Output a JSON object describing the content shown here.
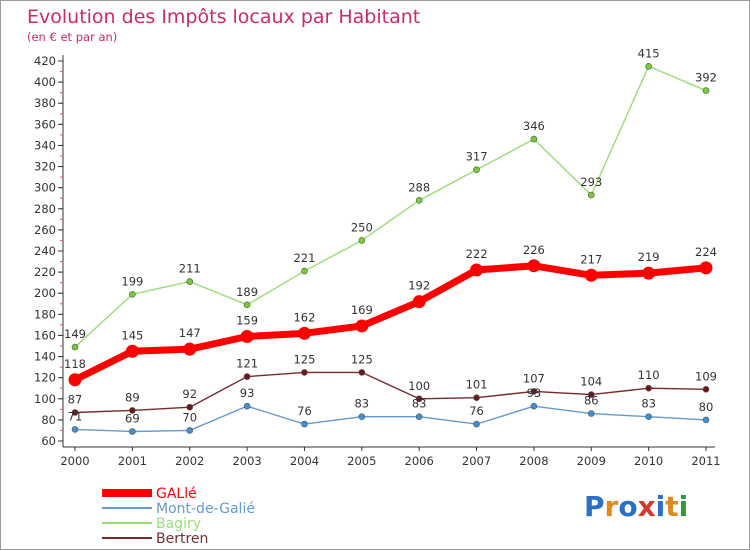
{
  "chart_data": {
    "type": "line",
    "title": "Evolution des Impôts locaux par Habitant",
    "subtitle": "(en € et par an)",
    "x": [
      "2000",
      "2001",
      "2002",
      "2003",
      "2004",
      "2005",
      "2006",
      "2007",
      "2008",
      "2009",
      "2010",
      "2011"
    ],
    "ylim": [
      60,
      420
    ],
    "yticks": [
      60,
      80,
      100,
      120,
      140,
      160,
      180,
      200,
      220,
      240,
      260,
      280,
      300,
      320,
      340,
      360,
      380,
      400,
      420
    ],
    "grid": false,
    "legend": "bottom-left",
    "series": [
      {
        "name": "GALlé",
        "color": "#ff0000",
        "marker_color": "#ff0000",
        "label_color": "#333333",
        "emphasis": true,
        "values": [
          118,
          145,
          147,
          159,
          162,
          169,
          192,
          222,
          226,
          217,
          219,
          224
        ]
      },
      {
        "name": "Mont-de-Galié",
        "color": "#6699cc",
        "marker_color": "#3f8fd2",
        "label_color": "#333333",
        "emphasis": false,
        "values": [
          71,
          69,
          70,
          93,
          76,
          83,
          83,
          76,
          93,
          86,
          83,
          80
        ]
      },
      {
        "name": "Bagiry",
        "color": "#99dd77",
        "marker_color": "#77cc33",
        "label_color": "#333333",
        "emphasis": false,
        "values": [
          149,
          199,
          211,
          189,
          221,
          250,
          288,
          317,
          346,
          293,
          415,
          392
        ]
      },
      {
        "name": "Bertren",
        "color": "#7a2a2a",
        "marker_color": "#6a1a1a",
        "label_color": "#333333",
        "emphasis": false,
        "values": [
          87,
          89,
          92,
          121,
          125,
          125,
          100,
          101,
          107,
          104,
          110,
          109
        ]
      }
    ]
  },
  "brand": {
    "letters": [
      "P",
      "r",
      "o",
      "x",
      "i",
      "t",
      "i"
    ],
    "colors": [
      "#2a6fc9",
      "#e08a1e",
      "#2a6fc9",
      "#d23a2a",
      "#2a6fc9",
      "#e08a1e",
      "#2a9a3a"
    ]
  }
}
